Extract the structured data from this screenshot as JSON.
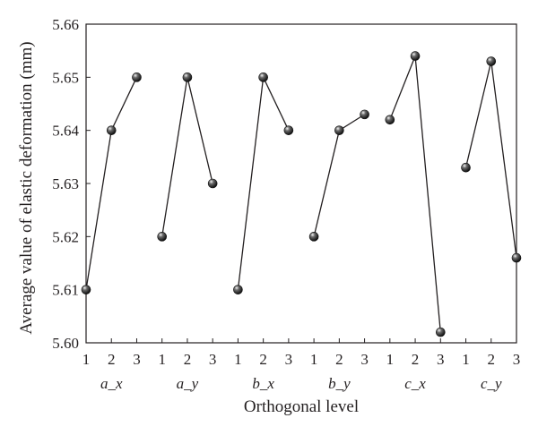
{
  "chart_data": {
    "type": "line",
    "title": "",
    "xlabel": "Orthogonal level",
    "ylabel": "Average value of elastic deformation (mm)",
    "ylim": [
      5.6,
      5.66
    ],
    "y_ticks": [
      "5.60",
      "5.61",
      "5.62",
      "5.63",
      "5.64",
      "5.65",
      "5.66"
    ],
    "grid": false,
    "legend": "none",
    "x_tick_labels": [
      "1",
      "2",
      "3"
    ],
    "series": [
      {
        "group_label": "a_x",
        "levels": [
          1,
          2,
          3
        ],
        "values": [
          5.61,
          5.64,
          5.65
        ]
      },
      {
        "group_label": "a_y",
        "levels": [
          1,
          2,
          3
        ],
        "values": [
          5.62,
          5.65,
          5.63
        ]
      },
      {
        "group_label": "b_x",
        "levels": [
          1,
          2,
          3
        ],
        "values": [
          5.61,
          5.65,
          5.64
        ]
      },
      {
        "group_label": "b_y",
        "levels": [
          1,
          2,
          3
        ],
        "values": [
          5.62,
          5.64,
          5.643
        ]
      },
      {
        "group_label": "c_x",
        "levels": [
          1,
          2,
          3
        ],
        "values": [
          5.642,
          5.654,
          5.602
        ]
      },
      {
        "group_label": "c_y",
        "levels": [
          1,
          2,
          3
        ],
        "values": [
          5.633,
          5.653,
          5.616
        ]
      }
    ],
    "colors": {
      "line": "#231f20",
      "marker": "#231f20",
      "axis": "#231f20"
    }
  }
}
